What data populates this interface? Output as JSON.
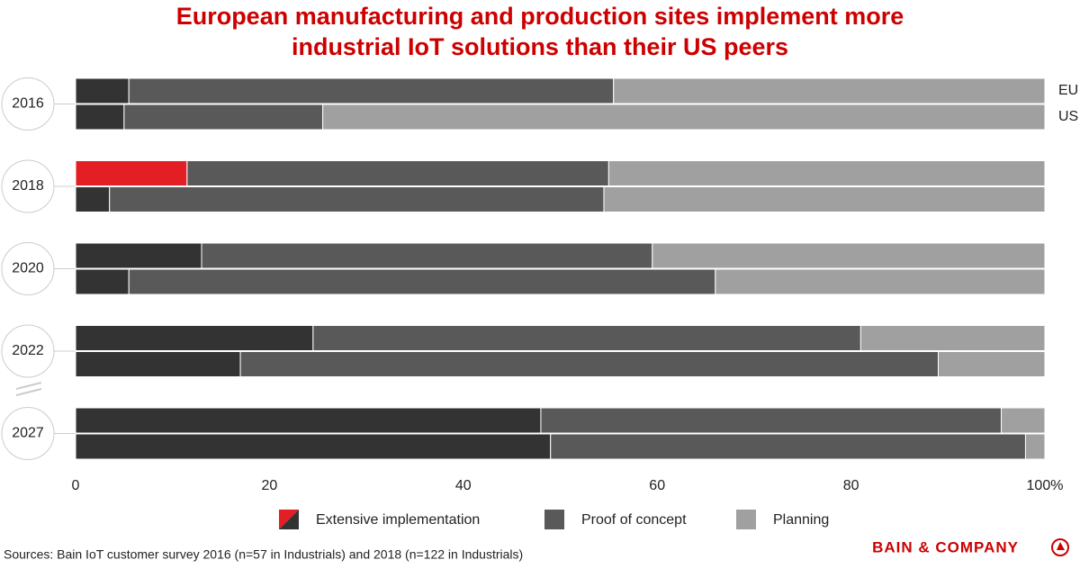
{
  "chart_data": {
    "type": "stacked-bar",
    "title": [
      "European manufacturing and production sites implement more",
      "industrial IoT solutions than their US peers"
    ],
    "categories": [
      "2016",
      "2018",
      "2020",
      "2022",
      "2027"
    ],
    "bar_labels": [
      "EU",
      "US"
    ],
    "series": [
      {
        "name": "Extensive implementation",
        "color": "#333333",
        "values": [
          [
            5.5,
            5
          ],
          [
            11.5,
            3.5
          ],
          [
            13,
            5.5
          ],
          [
            24.5,
            17
          ],
          [
            48,
            49
          ]
        ]
      },
      {
        "name": "Proof of concept",
        "color": "#595959",
        "values": [
          [
            50,
            20.5
          ],
          [
            43.5,
            51
          ],
          [
            46.5,
            60.5
          ],
          [
            56.5,
            72
          ],
          [
            47.5,
            49
          ]
        ]
      },
      {
        "name": "Planning",
        "color": "#a0a0a0",
        "values": [
          [
            44.5,
            74.5
          ],
          [
            45,
            45.5
          ],
          [
            40.5,
            34
          ],
          [
            19,
            11
          ],
          [
            4.5,
            2
          ]
        ]
      }
    ],
    "highlight": {
      "series": 0,
      "category": 1,
      "bar": 0,
      "color": "#e31e24"
    },
    "xlim": [
      0,
      100
    ],
    "xticks": [
      0,
      20,
      40,
      60,
      80,
      {
        "value": 100,
        "label": "100%"
      }
    ],
    "source": "Sources: Bain IoT customer survey 2016 (n=57 in Industrials) and 2018 (n=122 in Industrials)",
    "brand": "BAIN & COMPANY"
  }
}
